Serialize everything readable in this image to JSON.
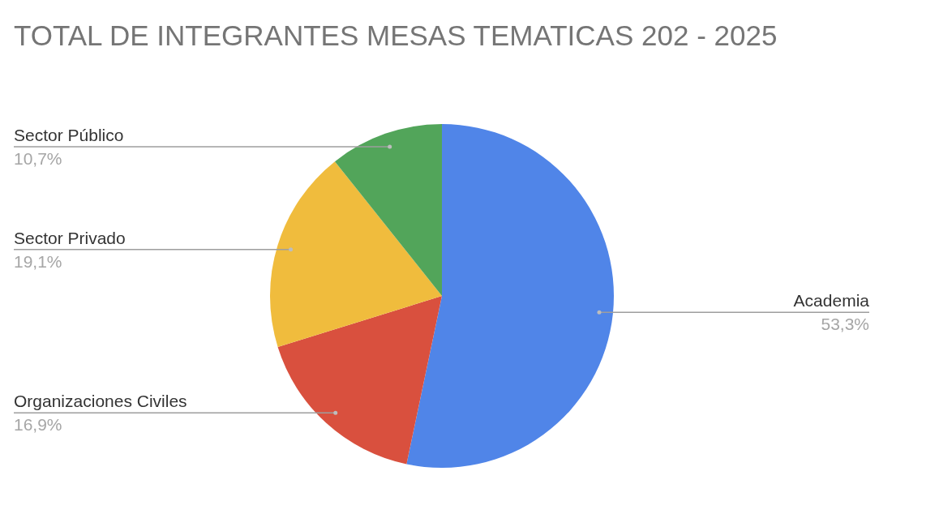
{
  "chart_data": {
    "type": "pie",
    "title": "TOTAL DE INTEGRANTES MESAS TEMATICAS 202 - 2025",
    "categories": [
      "Academia",
      "Organizaciones Civiles",
      "Sector Privado",
      "Sector Público"
    ],
    "values": [
      53.3,
      16.9,
      19.1,
      10.7
    ],
    "colors": [
      "#5085e8",
      "#d9503e",
      "#f0bc3d",
      "#52a55a"
    ],
    "value_labels": [
      "53,3%",
      "16,9%",
      "19,1%",
      "10,7%"
    ]
  }
}
